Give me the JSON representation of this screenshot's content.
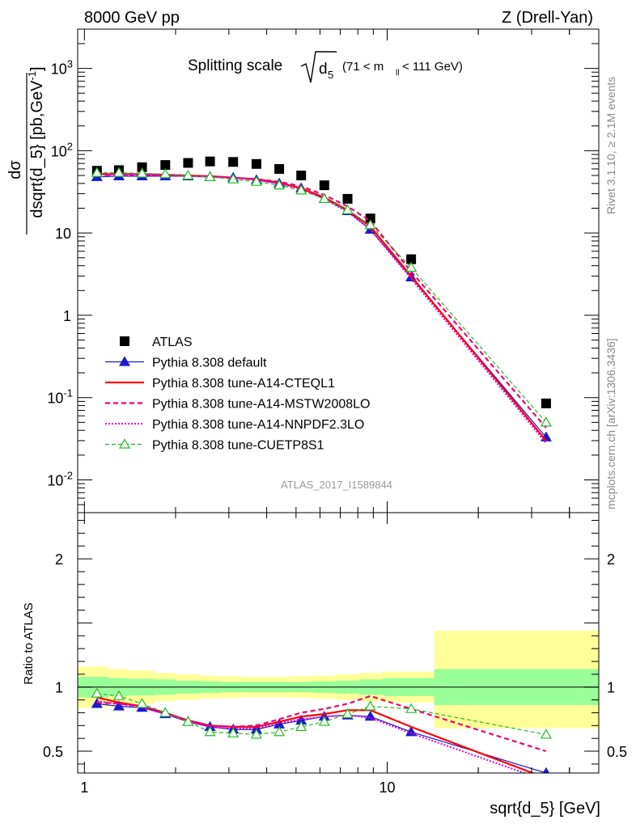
{
  "header": {
    "left": "8000 GeV pp",
    "right": "Z (Drell-Yan)"
  },
  "side": {
    "rivet": "Rivet 3.1.10, ≥ 2.1M events",
    "mcplots": "mcplots.cern.ch [arXiv:1306.3436]"
  },
  "colors": {
    "atlas": "#000000",
    "default": "#1a1acc",
    "cteql1": "#ff0000",
    "mstw": "#ee0077",
    "nnpdf": "#dd00dd",
    "cuetp8s1": "#22bb22",
    "band_inner": "#99ff99",
    "band_outer": "#ffff99"
  },
  "chart_data": [
    {
      "type": "line",
      "title_main": "Splitting scale",
      "title_sqrt": "d",
      "title_sub": "5",
      "title_range": "(71 < m",
      "title_range_sub": "ll",
      "title_range_end": " < 111 GeV)",
      "ylabel": "dσ/dsqrt{d_5} [pb,GeV⁻¹]",
      "ylabel_num": "dσ",
      "ylabel_den": "dsqrt{d_5} [pb,GeV",
      "ylabel_exp": "-1",
      "ylabel_tail": "]",
      "yscale": "log",
      "xscale": "log",
      "xlim": [
        0.95,
        50
      ],
      "ylim": [
        0.004,
        3000
      ],
      "x_tick_labels": [
        "1",
        "10"
      ],
      "y_tick_labels": [
        "10",
        "10",
        "10",
        "1",
        "10",
        "10",
        "10"
      ],
      "y_tick_exps": [
        "3",
        "2",
        "",
        "",
        "-1",
        "-2",
        ""
      ],
      "watermark": "ATLAS_2017_I1589844",
      "legend_position": "middle-left",
      "x": [
        1.1,
        1.3,
        1.55,
        1.85,
        2.2,
        2.6,
        3.1,
        3.7,
        4.4,
        5.2,
        6.2,
        7.4,
        8.8,
        12.0,
        33.5
      ],
      "series": [
        {
          "name": "ATLAS",
          "values": [
            57,
            58,
            63,
            67,
            71,
            74,
            73,
            69,
            60,
            50,
            38,
            26,
            15,
            4.8,
            0.085
          ]
        },
        {
          "name": "Pythia 8.308 default",
          "values": [
            48,
            49,
            49,
            49,
            49,
            48,
            47,
            44,
            40,
            35,
            26,
            18.5,
            11,
            2.9,
            0.033
          ]
        },
        {
          "name": "Pythia 8.308 tune-A14-CTEQL1",
          "values": [
            52,
            52,
            52,
            51,
            50,
            49,
            47,
            45,
            41,
            35,
            27,
            19,
            12,
            3.0,
            0.03
          ]
        },
        {
          "name": "Pythia 8.308 tune-A14-MSTW2008LO",
          "values": [
            50,
            51,
            51,
            50,
            50,
            49,
            47,
            45,
            42,
            37,
            29,
            21,
            14,
            3.4,
            0.043
          ]
        },
        {
          "name": "Pythia 8.308 tune-A14-NNPDF2.3LO",
          "values": [
            51,
            51,
            51,
            50,
            49,
            48,
            47,
            44,
            40,
            34,
            26,
            18,
            11,
            2.8,
            0.028
          ]
        },
        {
          "name": "Pythia 8.308 tune-CUETP8S1",
          "values": [
            54,
            54,
            53,
            52,
            50,
            48,
            45,
            42,
            38,
            33,
            26,
            19,
            12.5,
            3.8,
            0.05
          ]
        }
      ]
    },
    {
      "type": "line",
      "ylabel": "Ratio to ATLAS",
      "xlabel": "sqrt{d_5} [GeV]",
      "yscale": "linear",
      "xscale": "log",
      "xlim": [
        0.95,
        50
      ],
      "ylim": [
        0.33,
        2.36
      ],
      "reference_line": 1,
      "y_tick_labels": [
        "0.5",
        "1",
        "2"
      ],
      "x_tick_labels": [
        "1",
        "10"
      ],
      "bands": {
        "edges": [
          0.95,
          1.2,
          1.4,
          1.7,
          2.0,
          2.4,
          2.8,
          3.3,
          4.0,
          4.8,
          5.7,
          6.8,
          8.1,
          9.7,
          14.3,
          50
        ],
        "inner_low": [
          0.92,
          0.93,
          0.935,
          0.94,
          0.95,
          0.955,
          0.96,
          0.96,
          0.96,
          0.96,
          0.955,
          0.95,
          0.94,
          0.93,
          0.86
        ],
        "inner_high": [
          1.08,
          1.07,
          1.065,
          1.06,
          1.05,
          1.045,
          1.04,
          1.04,
          1.04,
          1.04,
          1.045,
          1.05,
          1.06,
          1.07,
          1.14
        ],
        "outer_low": [
          0.84,
          0.86,
          0.87,
          0.89,
          0.9,
          0.91,
          0.915,
          0.92,
          0.92,
          0.915,
          0.91,
          0.9,
          0.89,
          0.88,
          0.68
        ],
        "outer_high": [
          1.16,
          1.14,
          1.13,
          1.11,
          1.1,
          1.09,
          1.085,
          1.08,
          1.08,
          1.085,
          1.09,
          1.1,
          1.11,
          1.12,
          1.44
        ]
      },
      "x": [
        1.1,
        1.3,
        1.55,
        1.85,
        2.2,
        2.6,
        3.1,
        3.7,
        4.4,
        5.2,
        6.2,
        7.4,
        8.8,
        12.0,
        33.5
      ],
      "series": [
        {
          "name": "Pythia 8.308 default",
          "values": [
            0.87,
            0.85,
            0.84,
            0.79,
            0.73,
            0.69,
            0.67,
            0.67,
            0.71,
            0.74,
            0.77,
            0.78,
            0.77,
            0.65,
            0.33
          ]
        },
        {
          "name": "Pythia 8.308 tune-A14-CTEQL1",
          "values": [
            0.92,
            0.88,
            0.85,
            0.8,
            0.74,
            0.7,
            0.69,
            0.69,
            0.73,
            0.77,
            0.79,
            0.82,
            0.82,
            0.69,
            0.29
          ]
        },
        {
          "name": "Pythia 8.308 tune-A14-MSTW2008LO",
          "values": [
            0.88,
            0.87,
            0.85,
            0.8,
            0.74,
            0.7,
            0.69,
            0.7,
            0.75,
            0.8,
            0.83,
            0.87,
            0.93,
            0.83,
            0.5
          ]
        },
        {
          "name": "Pythia 8.308 tune-A14-NNPDF2.3LO",
          "values": [
            0.89,
            0.87,
            0.84,
            0.79,
            0.73,
            0.69,
            0.68,
            0.68,
            0.72,
            0.75,
            0.77,
            0.78,
            0.76,
            0.64,
            0.27
          ]
        },
        {
          "name": "Pythia 8.308 tune-CUETP8S1",
          "values": [
            0.95,
            0.93,
            0.87,
            0.8,
            0.73,
            0.65,
            0.64,
            0.63,
            0.65,
            0.69,
            0.73,
            0.79,
            0.85,
            0.83,
            0.63
          ]
        }
      ]
    }
  ]
}
